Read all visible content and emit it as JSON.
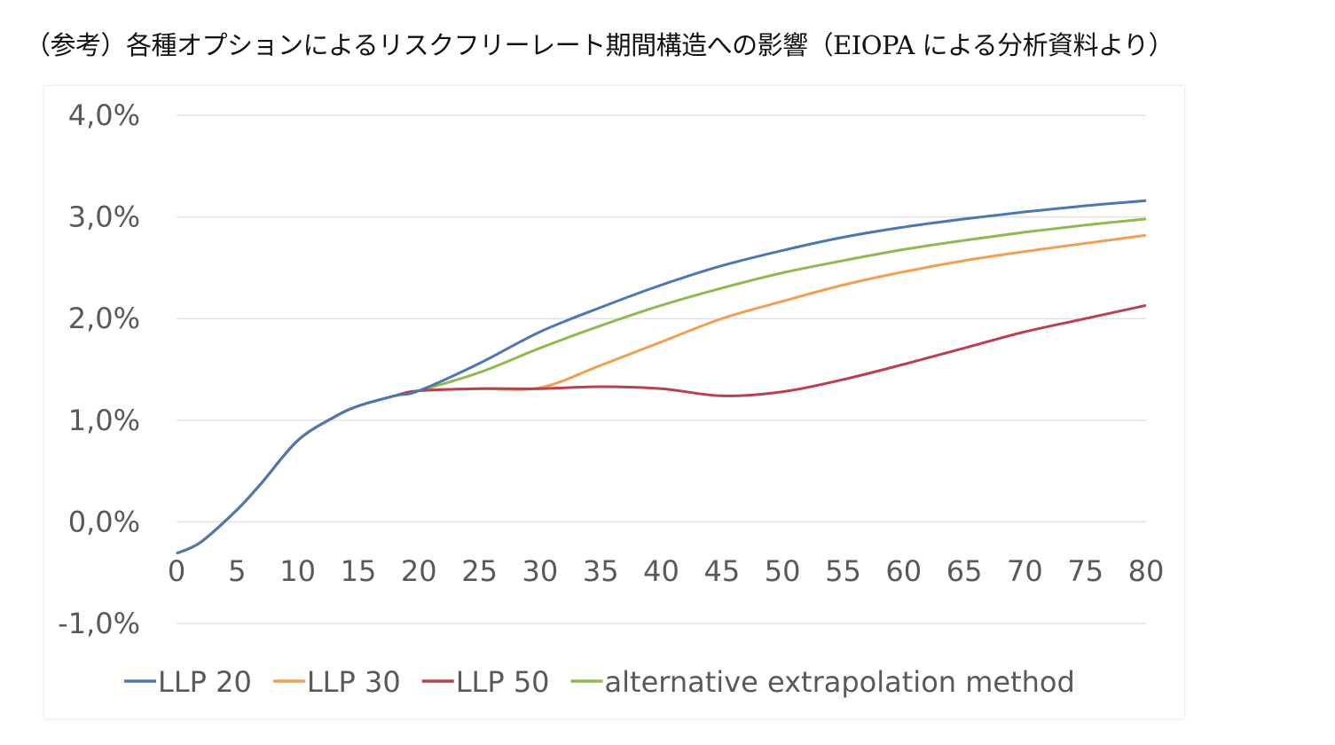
{
  "title": "（参考）各種オプションによるリスクフリーレート期間構造への影響（EIOPA による分析資料より）",
  "chart_data": {
    "type": "line",
    "title": "",
    "xlabel": "",
    "ylabel": "",
    "xlim": [
      0,
      80
    ],
    "ylim": [
      -1.0,
      4.0
    ],
    "grid": true,
    "legend_position": "bottom",
    "x_ticks": [
      "0",
      "5",
      "10",
      "15",
      "20",
      "25",
      "30",
      "35",
      "40",
      "45",
      "50",
      "55",
      "60",
      "65",
      "70",
      "75",
      "80"
    ],
    "y_ticks": [
      {
        "value": 4.0,
        "label": "4,0%"
      },
      {
        "value": 3.0,
        "label": "3,0%"
      },
      {
        "value": 2.0,
        "label": "2,0%"
      },
      {
        "value": 1.0,
        "label": "1,0%"
      },
      {
        "value": 0.0,
        "label": "0,0%"
      },
      {
        "value": -1.0,
        "label": "-1,0%"
      }
    ],
    "x": [
      0,
      2,
      5,
      7,
      10,
      13,
      15,
      18,
      20,
      25,
      30,
      35,
      40,
      45,
      50,
      55,
      60,
      65,
      70,
      75,
      80
    ],
    "series": [
      {
        "name": "LLP 20",
        "color": "#4a78b0",
        "values": [
          -0.31,
          -0.2,
          0.12,
          0.38,
          0.8,
          1.03,
          1.14,
          1.24,
          1.29,
          1.56,
          1.87,
          2.11,
          2.33,
          2.52,
          2.67,
          2.8,
          2.9,
          2.98,
          3.05,
          3.11,
          3.16
        ]
      },
      {
        "name": "LLP 30",
        "color": "#f0a052",
        "values": [
          -0.31,
          -0.2,
          0.12,
          0.38,
          0.8,
          1.03,
          1.14,
          1.24,
          1.29,
          1.31,
          1.32,
          1.54,
          1.77,
          2.0,
          2.17,
          2.33,
          2.46,
          2.57,
          2.66,
          2.74,
          2.82
        ]
      },
      {
        "name": "LLP 50",
        "color": "#b8404f",
        "values": [
          -0.31,
          -0.2,
          0.12,
          0.38,
          0.8,
          1.03,
          1.14,
          1.24,
          1.29,
          1.31,
          1.31,
          1.33,
          1.31,
          1.24,
          1.28,
          1.4,
          1.55,
          1.71,
          1.87,
          2.0,
          2.13
        ]
      },
      {
        "name": "alternative extrapolation method",
        "color": "#8fba52",
        "values": [
          -0.31,
          -0.2,
          0.12,
          0.38,
          0.8,
          1.03,
          1.14,
          1.24,
          1.29,
          1.47,
          1.71,
          1.93,
          2.13,
          2.3,
          2.45,
          2.57,
          2.68,
          2.77,
          2.85,
          2.92,
          2.98
        ]
      }
    ]
  }
}
